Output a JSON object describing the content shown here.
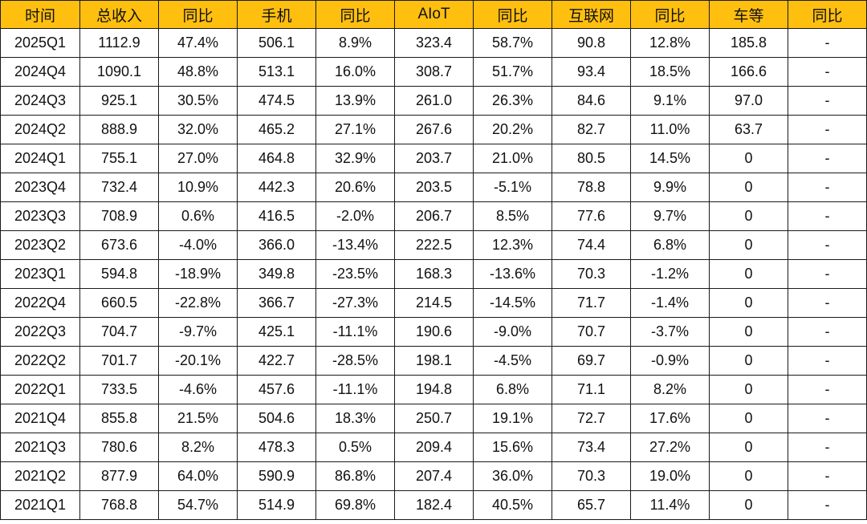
{
  "chart_data": {
    "type": "table",
    "header_color": "#FFBF0F",
    "columns": [
      "时间",
      "总收入",
      "同比",
      "手机",
      "同比",
      "AIoT",
      "同比",
      "互联网",
      "同比",
      "车等",
      "同比"
    ],
    "rows": [
      [
        "2025Q1",
        "1112.9",
        "47.4%",
        "506.1",
        "8.9%",
        "323.4",
        "58.7%",
        "90.8",
        "12.8%",
        "185.8",
        "-"
      ],
      [
        "2024Q4",
        "1090.1",
        "48.8%",
        "513.1",
        "16.0%",
        "308.7",
        "51.7%",
        "93.4",
        "18.5%",
        "166.6",
        "-"
      ],
      [
        "2024Q3",
        "925.1",
        "30.5%",
        "474.5",
        "13.9%",
        "261.0",
        "26.3%",
        "84.6",
        "9.1%",
        "97.0",
        "-"
      ],
      [
        "2024Q2",
        "888.9",
        "32.0%",
        "465.2",
        "27.1%",
        "267.6",
        "20.2%",
        "82.7",
        "11.0%",
        "63.7",
        "-"
      ],
      [
        "2024Q1",
        "755.1",
        "27.0%",
        "464.8",
        "32.9%",
        "203.7",
        "21.0%",
        "80.5",
        "14.5%",
        "0",
        "-"
      ],
      [
        "2023Q4",
        "732.4",
        "10.9%",
        "442.3",
        "20.6%",
        "203.5",
        "-5.1%",
        "78.8",
        "9.9%",
        "0",
        "-"
      ],
      [
        "2023Q3",
        "708.9",
        "0.6%",
        "416.5",
        "-2.0%",
        "206.7",
        "8.5%",
        "77.6",
        "9.7%",
        "0",
        "-"
      ],
      [
        "2023Q2",
        "673.6",
        "-4.0%",
        "366.0",
        "-13.4%",
        "222.5",
        "12.3%",
        "74.4",
        "6.8%",
        "0",
        "-"
      ],
      [
        "2023Q1",
        "594.8",
        "-18.9%",
        "349.8",
        "-23.5%",
        "168.3",
        "-13.6%",
        "70.3",
        "-1.2%",
        "0",
        "-"
      ],
      [
        "2022Q4",
        "660.5",
        "-22.8%",
        "366.7",
        "-27.3%",
        "214.5",
        "-14.5%",
        "71.7",
        "-1.4%",
        "0",
        "-"
      ],
      [
        "2022Q3",
        "704.7",
        "-9.7%",
        "425.1",
        "-11.1%",
        "190.6",
        "-9.0%",
        "70.7",
        "-3.7%",
        "0",
        "-"
      ],
      [
        "2022Q2",
        "701.7",
        "-20.1%",
        "422.7",
        "-28.5%",
        "198.1",
        "-4.5%",
        "69.7",
        "-0.9%",
        "0",
        "-"
      ],
      [
        "2022Q1",
        "733.5",
        "-4.6%",
        "457.6",
        "-11.1%",
        "194.8",
        "6.8%",
        "71.1",
        "8.2%",
        "0",
        "-"
      ],
      [
        "2021Q4",
        "855.8",
        "21.5%",
        "504.6",
        "18.3%",
        "250.7",
        "19.1%",
        "72.7",
        "17.6%",
        "0",
        "-"
      ],
      [
        "2021Q3",
        "780.6",
        "8.2%",
        "478.3",
        "0.5%",
        "209.4",
        "15.6%",
        "73.4",
        "27.2%",
        "0",
        "-"
      ],
      [
        "2021Q2",
        "877.9",
        "64.0%",
        "590.9",
        "86.8%",
        "207.4",
        "36.0%",
        "70.3",
        "19.0%",
        "0",
        "-"
      ],
      [
        "2021Q1",
        "768.8",
        "54.7%",
        "514.9",
        "69.8%",
        "182.4",
        "40.5%",
        "65.7",
        "11.4%",
        "0",
        "-"
      ]
    ]
  }
}
